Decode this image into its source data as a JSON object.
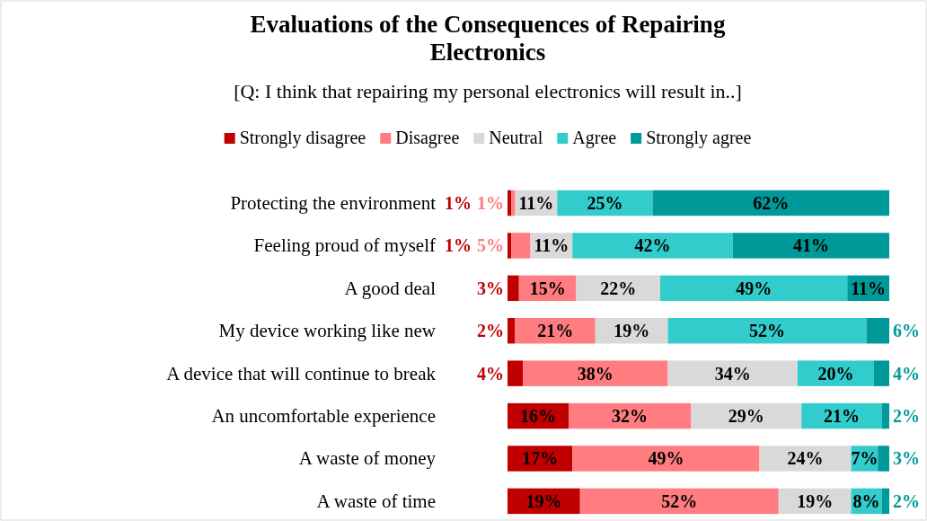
{
  "chart_data": {
    "type": "bar",
    "orientation": "horizontal",
    "stacked": true,
    "title": "Evaluations of the Consequences of Repairing Electronics",
    "subtitle": "[Q: I think that repairing my personal electronics will result in..]",
    "categories": [
      "Protecting the environment",
      "Feeling proud of myself",
      "A good deal",
      "My device working like new",
      "A device that will continue to break",
      "An uncomfortable experience",
      "A waste of money",
      "A waste of time"
    ],
    "tick_labels": "y",
    "legend": "top",
    "series": [
      {
        "name": "Strongly disagree",
        "color": "#c00000",
        "values": [
          1,
          1,
          3,
          2,
          4,
          16,
          17,
          19
        ],
        "value_labels": [
          "1%",
          "1%",
          "3%",
          "2%",
          "4%",
          "16%",
          "17%",
          "19%"
        ]
      },
      {
        "name": "Disagree",
        "color": "#ff7c80",
        "values": [
          1,
          5,
          15,
          21,
          38,
          32,
          49,
          52
        ],
        "value_labels": [
          "1%",
          "5%",
          "15%",
          "21%",
          "38%",
          "32%",
          "49%",
          "52%"
        ]
      },
      {
        "name": "Neutral",
        "color": "#d9d9d9",
        "values": [
          11,
          11,
          22,
          19,
          34,
          29,
          24,
          19
        ],
        "value_labels": [
          "11%",
          "11%",
          "22%",
          "19%",
          "34%",
          "29%",
          "24%",
          "19%"
        ]
      },
      {
        "name": "Agree",
        "color": "#33cccc",
        "values": [
          25,
          42,
          49,
          52,
          20,
          21,
          7,
          8
        ],
        "value_labels": [
          "25%",
          "42%",
          "49%",
          "52%",
          "20%",
          "21%",
          "7%",
          "8%"
        ]
      },
      {
        "name": "Strongly agree",
        "color": "#009999",
        "values": [
          62,
          41,
          11,
          6,
          4,
          2,
          3,
          2
        ],
        "value_labels": [
          "62%",
          "41%",
          "11%",
          "6%",
          "4%",
          "2%",
          "3%",
          "2%"
        ]
      }
    ]
  }
}
